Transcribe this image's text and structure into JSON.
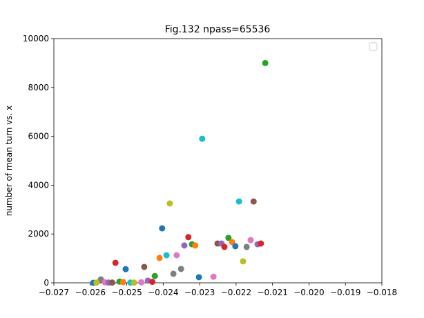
{
  "chart_data": {
    "type": "scatter",
    "title": "Fig.132 npass=65536",
    "ylabel": "number  of mean turn vs. x",
    "xlim": [
      -0.027,
      -0.018
    ],
    "xticks": [
      {
        "value": -0.027,
        "label": "−0.027"
      },
      {
        "value": -0.026,
        "label": "−0.026"
      },
      {
        "value": -0.025,
        "label": "−0.025"
      },
      {
        "value": -0.024,
        "label": "−0.024"
      },
      {
        "value": -0.023,
        "label": "−0.023"
      },
      {
        "value": -0.022,
        "label": "−0.022"
      },
      {
        "value": -0.021,
        "label": "−0.021"
      },
      {
        "value": -0.02,
        "label": "−0.020"
      },
      {
        "value": -0.019,
        "label": "−0.019"
      },
      {
        "value": -0.018,
        "label": "−0.018"
      }
    ],
    "ylim": [
      0,
      10000
    ],
    "yticks": [
      0,
      2000,
      4000,
      6000,
      8000,
      10000
    ],
    "x": [
      -0.0212,
      -0.02293,
      -0.02382,
      -0.02192,
      -0.02152,
      -0.02403,
      -0.02331,
      -0.02221,
      -0.02321,
      -0.02342,
      -0.02312,
      -0.02251,
      -0.0224,
      -0.02232,
      -0.02211,
      -0.02202,
      -0.02171,
      -0.0216,
      -0.02141,
      -0.02132,
      -0.02181,
      -0.02391,
      -0.02363,
      -0.0241,
      -0.02531,
      -0.02452,
      -0.02503,
      -0.02351,
      -0.02372,
      -0.02423,
      -0.02302,
      -0.02262,
      -0.02571,
      -0.02442,
      -0.02592,
      -0.02583,
      -0.0256,
      -0.0255,
      -0.0254,
      -0.0252,
      -0.0251,
      -0.0249,
      -0.0248,
      -0.0246,
      -0.0243
    ],
    "y": [
      9000,
      5900,
      3250,
      3330,
      3330,
      2230,
      1870,
      1840,
      1580,
      1530,
      1530,
      1610,
      1610,
      1470,
      1670,
      1500,
      1470,
      1750,
      1580,
      1610,
      880,
      1130,
      1130,
      1020,
      820,
      650,
      560,
      570,
      370,
      280,
      230,
      250,
      140,
      90,
      0,
      10,
      20,
      10,
      10,
      50,
      30,
      10,
      10,
      20,
      40
    ],
    "colors": [
      "#2ca02c",
      "#17becf",
      "#bcbd22",
      "#17becf",
      "#8c564b",
      "#1f77b4",
      "#d62728",
      "#2ca02c",
      "#2ca02c",
      "#9467bd",
      "#ff7f0e",
      "#8c564b",
      "#9467bd",
      "#d62728",
      "#ff7f0e",
      "#1f77b4",
      "#7f7f7f",
      "#e377c2",
      "#9467bd",
      "#d62728",
      "#bcbd22",
      "#17becf",
      "#e377c2",
      "#ff7f0e",
      "#d62728",
      "#8c564b",
      "#1f77b4",
      "#7f7f7f",
      "#7f7f7f",
      "#2ca02c",
      "#1f77b4",
      "#e377c2",
      "#7f7f7f",
      "#9467bd",
      "#1f77b4",
      "#bcbd22",
      "#e377c2",
      "#9467bd",
      "#8c564b",
      "#2ca02c",
      "#ff7f0e",
      "#17becf",
      "#bcbd22",
      "#e377c2",
      "#d62728"
    ]
  }
}
